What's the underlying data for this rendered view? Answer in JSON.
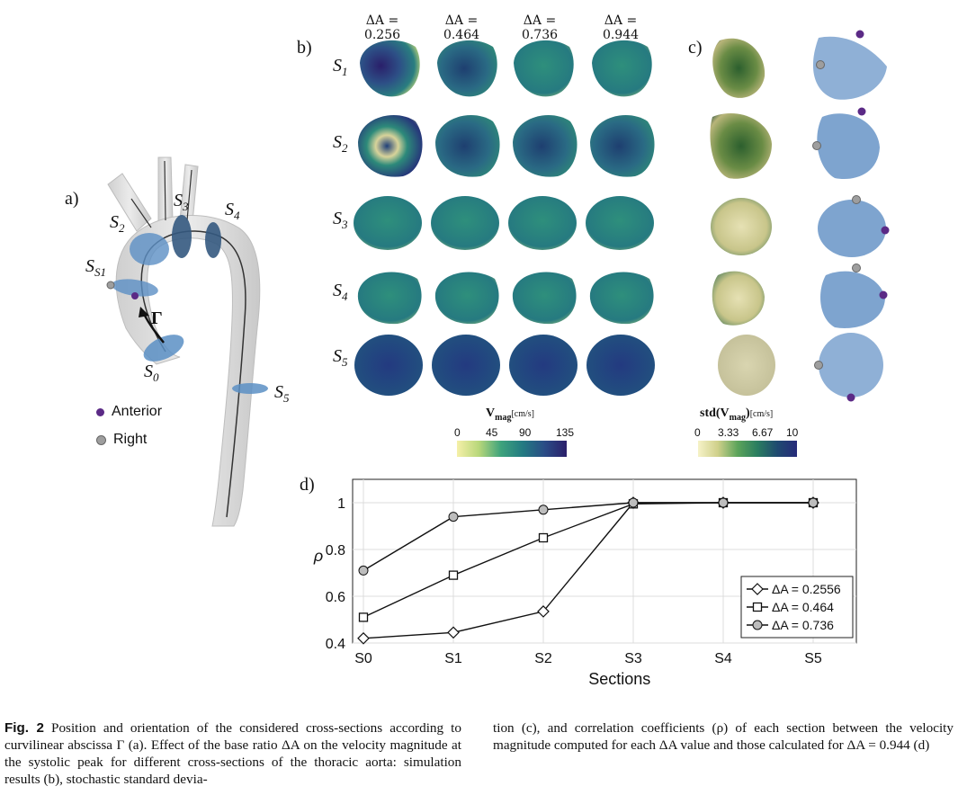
{
  "panels": {
    "a": "a)",
    "b": "b)",
    "c": "c)",
    "d": "d)"
  },
  "aorta": {
    "labels": {
      "S0": "S0",
      "S1": "S1",
      "S2": "S2",
      "S3": "S3",
      "S4": "S4",
      "S5": "S5",
      "gamma": "Γ"
    },
    "legend": {
      "anterior": "Anterior",
      "right": "Right"
    },
    "colors": {
      "anterior": "#5b2a86",
      "right": "#9e9e9e",
      "section": "#5b8fc4"
    }
  },
  "grid": {
    "headers": [
      "ΔA = 0.256",
      "ΔA = 0.464",
      "ΔA = 0.736",
      "ΔA = 0.944"
    ],
    "rows": [
      "S1",
      "S2",
      "S3",
      "S4",
      "S5"
    ]
  },
  "colorbar_v": {
    "title": "V",
    "title_sub": "mag",
    "unit": "[cm/s]",
    "ticks": [
      "0",
      "45",
      "90",
      "135"
    ]
  },
  "colorbar_std": {
    "title": "std(V",
    "title_sub": "mag",
    "title_end": ")",
    "unit": "[cm/s]",
    "ticks": [
      "0",
      "3.33",
      "6.67",
      "10"
    ]
  },
  "chart_data": {
    "type": "line",
    "xlabel": "Sections",
    "ylabel": "ρ",
    "categories": [
      "S0",
      "S1",
      "S2",
      "S3",
      "S4",
      "S5"
    ],
    "ylim": [
      0.4,
      1.1
    ],
    "yticks": [
      "0.4",
      "0.6",
      "0.8",
      "1"
    ],
    "grid": true,
    "legend_position": "bottom-right",
    "series": [
      {
        "name": "ΔA = 0.2556",
        "marker": "diamond",
        "values": [
          0.42,
          0.445,
          0.535,
          1.0,
          1.0,
          1.0
        ]
      },
      {
        "name": "ΔA = 0.464",
        "marker": "square",
        "values": [
          0.51,
          0.69,
          0.85,
          0.995,
          1.0,
          1.0
        ]
      },
      {
        "name": "ΔA = 0.736",
        "marker": "circle",
        "values": [
          0.71,
          0.94,
          0.97,
          1.0,
          1.0,
          1.0
        ]
      }
    ]
  },
  "caption": {
    "fig": "Fig. 2",
    "col1": "Position and orientation of the considered cross-sections according to curvilinear abscissa Γ (a). Effect of the base ratio ΔA on the velocity magnitude at the systolic peak for different cross-sections of the thoracic aorta: simulation results (b), stochastic standard devia-",
    "col2": "tion (c), and correlation coefficients (ρ) of each section between the velocity magnitude computed for each ΔA value and those calculated for ΔA = 0.944 (d)"
  }
}
